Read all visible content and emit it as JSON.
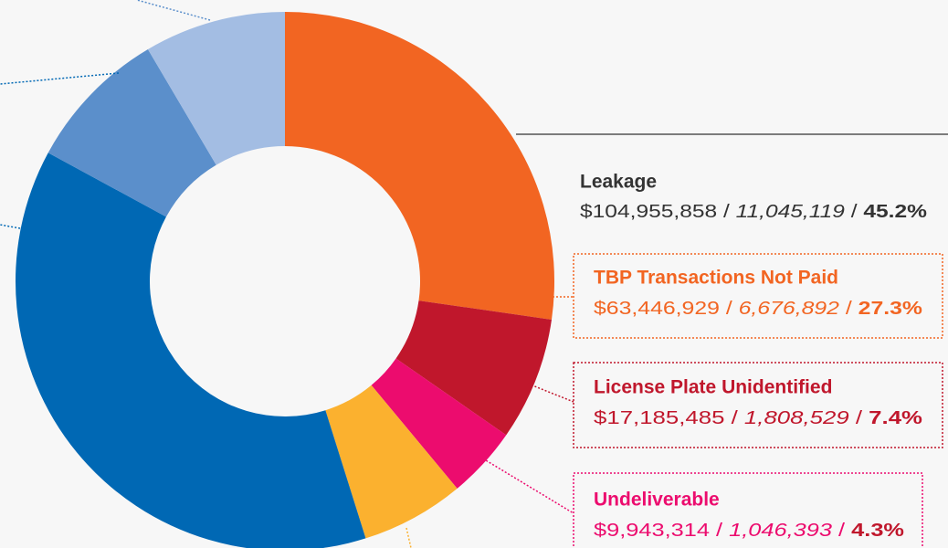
{
  "chart_data": {
    "type": "donut",
    "categories": [
      "TBP Transactions Not Paid",
      "License Plate Unidentified",
      "Undeliverable",
      null,
      null,
      null,
      null
    ],
    "values": [
      27.3,
      7.4,
      4.3,
      6.2,
      37.8,
      8.6,
      8.5
    ],
    "value_labels": [
      "27.3%",
      "7.4%",
      "4.3%",
      null,
      null,
      null,
      null
    ],
    "amounts": [
      "$63,446,929",
      "$17,185,485",
      "$9,943,314",
      null,
      null,
      null,
      null
    ],
    "counts": [
      "6,676,892",
      "1,808,529",
      "1,046,393",
      null,
      null,
      null,
      null
    ],
    "colors": [
      "#f26522",
      "#c0172c",
      "#ec0c6e",
      "#fbb12f",
      "#0068b4",
      "#5b8fcb",
      "#a3bde3"
    ],
    "separator": " / ",
    "total": {
      "name": "Leakage",
      "amount": "$104,955,858",
      "count": "11,045,119",
      "percent": "45.2%"
    }
  }
}
